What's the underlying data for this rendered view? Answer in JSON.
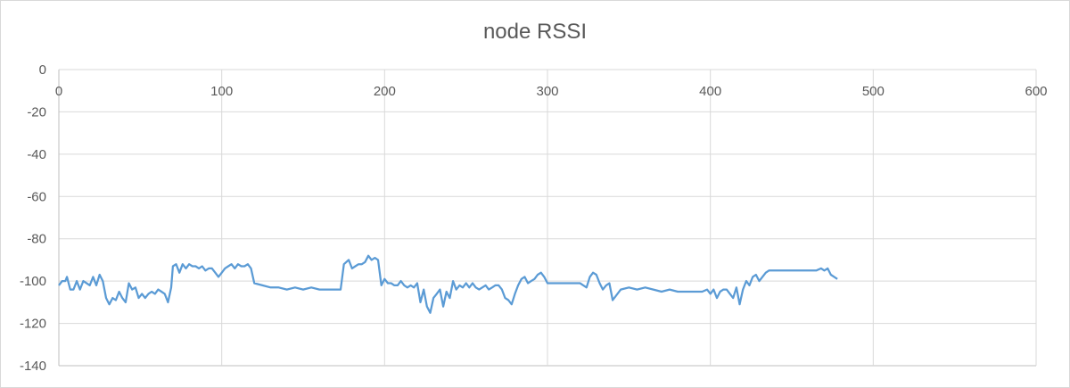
{
  "chart_data": {
    "type": "line",
    "title": "node RSSI",
    "xlabel": "",
    "ylabel": "",
    "xlim": [
      0,
      600
    ],
    "ylim": [
      -140,
      0
    ],
    "x_ticks": [
      "0",
      "100",
      "200",
      "300",
      "400",
      "500",
      "600"
    ],
    "y_ticks": [
      "0",
      "-20",
      "-40",
      "-60",
      "-80",
      "-100",
      "-120",
      "-140"
    ],
    "grid": true,
    "legend": "none",
    "line_color": "#5b9bd5",
    "series": [
      {
        "x": [
          0,
          2,
          4,
          5,
          7,
          9,
          11,
          13,
          15,
          17,
          19,
          21,
          23,
          25,
          27,
          29,
          31,
          33,
          35,
          37,
          39,
          41,
          43,
          45,
          47,
          49,
          51,
          53,
          55,
          57,
          59,
          61,
          63,
          65,
          67,
          69,
          70,
          72,
          74,
          76,
          78,
          80,
          82,
          84,
          86,
          88,
          90,
          92,
          94,
          96,
          98,
          100,
          102,
          104,
          106,
          108,
          110,
          112,
          114,
          116,
          118,
          120,
          125,
          130,
          135,
          140,
          145,
          150,
          155,
          160,
          165,
          170,
          173,
          175,
          178,
          180,
          182,
          184,
          186,
          188,
          190,
          192,
          194,
          196,
          198,
          200,
          202,
          204,
          206,
          208,
          210,
          212,
          214,
          216,
          218,
          220,
          222,
          224,
          226,
          228,
          230,
          232,
          234,
          236,
          238,
          240,
          242,
          244,
          246,
          248,
          250,
          252,
          254,
          256,
          258,
          260,
          262,
          264,
          266,
          268,
          270,
          272,
          274,
          276,
          278,
          280,
          282,
          284,
          286,
          288,
          290,
          292,
          294,
          296,
          298,
          300,
          305,
          310,
          315,
          320,
          322,
          324,
          326,
          328,
          330,
          332,
          334,
          336,
          338,
          340,
          345,
          350,
          355,
          360,
          365,
          370,
          375,
          380,
          385,
          390,
          395,
          398,
          400,
          402,
          404,
          406,
          408,
          410,
          412,
          414,
          416,
          418,
          420,
          422,
          424,
          426,
          428,
          430,
          432,
          434,
          436,
          438,
          440,
          445,
          450,
          455,
          460,
          465,
          468,
          470,
          472,
          474,
          476,
          478
        ],
        "y": [
          -102,
          -100,
          -100,
          -98,
          -104,
          -104,
          -100,
          -104,
          -100,
          -101,
          -102,
          -98,
          -102,
          -97,
          -100,
          -108,
          -111,
          -108,
          -109,
          -105,
          -108,
          -110,
          -101,
          -104,
          -103,
          -108,
          -106,
          -108,
          -106,
          -105,
          -106,
          -104,
          -105,
          -106,
          -110,
          -103,
          -93,
          -92,
          -96,
          -92,
          -94,
          -92,
          -93,
          -93,
          -94,
          -93,
          -95,
          -94,
          -94,
          -96,
          -98,
          -96,
          -94,
          -93,
          -92,
          -94,
          -92,
          -93,
          -93,
          -92,
          -94,
          -101,
          -102,
          -103,
          -103,
          -104,
          -103,
          -104,
          -103,
          -104,
          -104,
          -104,
          -104,
          -92,
          -90,
          -94,
          -93,
          -92,
          -92,
          -91,
          -88,
          -90,
          -89,
          -90,
          -102,
          -99,
          -101,
          -101,
          -102,
          -102,
          -100,
          -102,
          -103,
          -102,
          -103,
          -101,
          -110,
          -104,
          -112,
          -115,
          -108,
          -106,
          -104,
          -112,
          -105,
          -108,
          -100,
          -104,
          -102,
          -103,
          -101,
          -103,
          -101,
          -103,
          -104,
          -103,
          -102,
          -104,
          -103,
          -102,
          -102,
          -104,
          -108,
          -109,
          -111,
          -106,
          -102,
          -99,
          -98,
          -101,
          -100,
          -99,
          -97,
          -96,
          -98,
          -101,
          -101,
          -101,
          -101,
          -101,
          -102,
          -103,
          -98,
          -96,
          -97,
          -101,
          -104,
          -102,
          -101,
          -109,
          -104,
          -103,
          -104,
          -103,
          -104,
          -105,
          -104,
          -105,
          -105,
          -105,
          -105,
          -104,
          -106,
          -104,
          -108,
          -105,
          -104,
          -104,
          -106,
          -108,
          -103,
          -111,
          -104,
          -100,
          -102,
          -98,
          -97,
          -100,
          -98,
          -96,
          -95,
          -95,
          -95,
          -95,
          -95,
          -95,
          -95,
          -95,
          -94,
          -95,
          -94,
          -97,
          -98,
          -99
        ]
      }
    ]
  }
}
